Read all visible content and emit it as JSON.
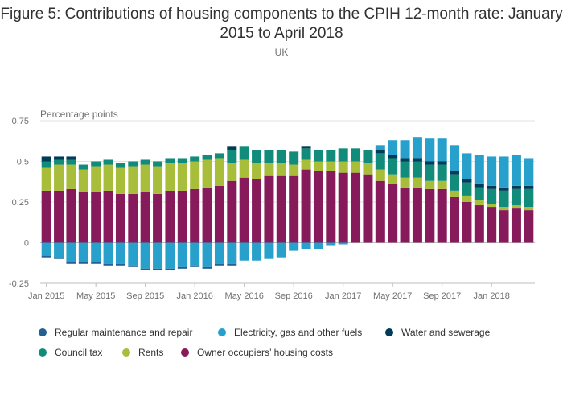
{
  "chart_data": {
    "type": "bar",
    "title": "Figure 5: Contributions of housing components to the CPIH 12-month rate: January 2015 to April 2018",
    "subtitle": "UK",
    "ylabel": "Percentage points",
    "ylim": [
      -0.25,
      0.75
    ],
    "yticks": [
      {
        "value": 0.75,
        "label": "0.75"
      },
      {
        "value": 0.5,
        "label": "0.5"
      },
      {
        "value": 0.25,
        "label": "0.25"
      },
      {
        "value": 0,
        "label": "0"
      },
      {
        "value": -0.25,
        "label": "-0.25"
      }
    ],
    "grid": true,
    "stacked": true,
    "legend_position": "bottom",
    "categories": [
      "Jan 2015",
      "Feb 2015",
      "Mar 2015",
      "Apr 2015",
      "May 2015",
      "Jun 2015",
      "Jul 2015",
      "Aug 2015",
      "Sep 2015",
      "Oct 2015",
      "Nov 2015",
      "Dec 2015",
      "Jan 2016",
      "Feb 2016",
      "Mar 2016",
      "Apr 2016",
      "May 2016",
      "Jun 2016",
      "Jul 2016",
      "Aug 2016",
      "Sep 2016",
      "Oct 2016",
      "Nov 2016",
      "Dec 2016",
      "Jan 2017",
      "Feb 2017",
      "Mar 2017",
      "Apr 2017",
      "May 2017",
      "Jun 2017",
      "Jul 2017",
      "Aug 2017",
      "Sep 2017",
      "Oct 2017",
      "Nov 2017",
      "Dec 2017",
      "Jan 2018",
      "Feb 2018",
      "Mar 2018",
      "Apr 2018"
    ],
    "xtick_labels": [
      "Jan 2015",
      "May 2015",
      "Sep 2015",
      "Jan 2016",
      "May 2016",
      "Sep 2016",
      "Jan 2017",
      "May 2017",
      "Sep 2017",
      "Jan 2018"
    ],
    "series": [
      {
        "name": "Owner occupiers’ housing costs",
        "color": "#871a5b",
        "values": [
          0.32,
          0.32,
          0.33,
          0.31,
          0.31,
          0.32,
          0.3,
          0.3,
          0.31,
          0.3,
          0.32,
          0.32,
          0.33,
          0.34,
          0.35,
          0.38,
          0.4,
          0.39,
          0.41,
          0.41,
          0.41,
          0.45,
          0.44,
          0.44,
          0.43,
          0.43,
          0.42,
          0.38,
          0.36,
          0.34,
          0.34,
          0.33,
          0.33,
          0.28,
          0.25,
          0.23,
          0.22,
          0.2,
          0.21,
          0.2
        ]
      },
      {
        "name": "Rents",
        "color": "#a8bd3a",
        "values": [
          0.14,
          0.16,
          0.15,
          0.14,
          0.16,
          0.16,
          0.16,
          0.17,
          0.17,
          0.17,
          0.17,
          0.17,
          0.17,
          0.17,
          0.17,
          0.11,
          0.11,
          0.1,
          0.08,
          0.08,
          0.07,
          0.06,
          0.06,
          0.06,
          0.07,
          0.07,
          0.07,
          0.07,
          0.06,
          0.06,
          0.06,
          0.05,
          0.05,
          0.04,
          0.04,
          0.03,
          0.02,
          0.02,
          0.02,
          0.02
        ]
      },
      {
        "name": "Council tax",
        "color": "#118c7b",
        "values": [
          0.04,
          0.03,
          0.03,
          0.03,
          0.03,
          0.03,
          0.03,
          0.03,
          0.03,
          0.03,
          0.03,
          0.03,
          0.03,
          0.03,
          0.03,
          0.08,
          0.08,
          0.08,
          0.08,
          0.08,
          0.08,
          0.07,
          0.07,
          0.07,
          0.08,
          0.08,
          0.08,
          0.1,
          0.1,
          0.1,
          0.1,
          0.1,
          0.1,
          0.1,
          0.08,
          0.08,
          0.09,
          0.1,
          0.1,
          0.11
        ]
      },
      {
        "name": "Water and sewerage",
        "color": "#003c57",
        "values": [
          0.03,
          0.02,
          0.02,
          0.0,
          0.0,
          0.0,
          0.0,
          0.0,
          0.0,
          0.0,
          0.0,
          0.0,
          0.0,
          0.0,
          0.0,
          0.02,
          0.0,
          0.0,
          0.0,
          0.0,
          0.0,
          0.01,
          0.0,
          0.0,
          0.0,
          0.0,
          0.0,
          0.02,
          0.02,
          0.02,
          0.02,
          0.02,
          0.02,
          0.02,
          0.02,
          0.02,
          0.02,
          0.02,
          0.02,
          0.02
        ]
      },
      {
        "name": "Electricity, gas and other fuels",
        "color": "#27a0cc",
        "values": [
          -0.08,
          -0.09,
          -0.12,
          -0.12,
          -0.12,
          -0.13,
          -0.13,
          -0.14,
          -0.16,
          -0.16,
          -0.16,
          -0.15,
          -0.14,
          -0.15,
          -0.13,
          -0.13,
          -0.11,
          -0.11,
          -0.1,
          -0.09,
          -0.05,
          -0.04,
          -0.04,
          -0.02,
          -0.01,
          0.0,
          0.0,
          0.03,
          0.09,
          0.11,
          0.13,
          0.14,
          0.14,
          0.16,
          0.16,
          0.18,
          0.18,
          0.19,
          0.19,
          0.17
        ]
      },
      {
        "name": "Regular maintenance and repair",
        "color": "#206095",
        "values": [
          -0.01,
          -0.01,
          -0.01,
          -0.01,
          -0.01,
          -0.01,
          -0.01,
          -0.01,
          -0.01,
          -0.01,
          -0.01,
          -0.01,
          -0.01,
          -0.01,
          -0.01,
          -0.01,
          0.0,
          0.0,
          0.0,
          0.0,
          0.0,
          0.0,
          0.0,
          0.0,
          0.0,
          0.0,
          0.0,
          0.0,
          0.0,
          0.0,
          0.0,
          0.0,
          0.0,
          0.0,
          0.0,
          0.0,
          0.0,
          0.0,
          0.0,
          0.0
        ]
      }
    ]
  },
  "legend": {
    "rows": [
      [
        {
          "label": "Regular maintenance and repair",
          "color": "#206095"
        },
        {
          "label": "Electricity, gas and other fuels",
          "color": "#27a0cc"
        },
        {
          "label": "Water and sewerage",
          "color": "#003c57"
        }
      ],
      [
        {
          "label": "Council tax",
          "color": "#118c7b"
        },
        {
          "label": "Rents",
          "color": "#a8bd3a"
        },
        {
          "label": "Owner occupiers’ housing costs",
          "color": "#871a5b"
        }
      ]
    ]
  }
}
